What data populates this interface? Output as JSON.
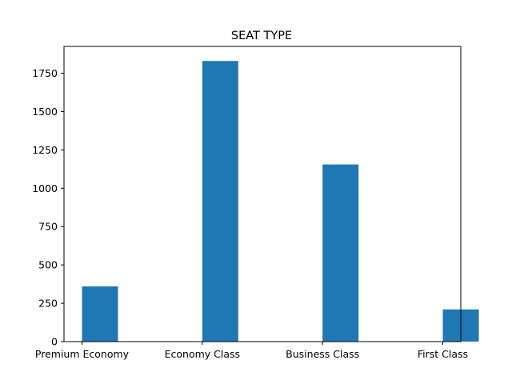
{
  "chart_data": {
    "type": "bar",
    "title": "SEAT TYPE",
    "xlabel": "",
    "ylabel": "",
    "categories": [
      "Premium Economy",
      "Economy Class",
      "Business Class",
      "First Class"
    ],
    "values": [
      360,
      1830,
      1155,
      210
    ],
    "ylim": [
      0,
      1925
    ],
    "yticks": [
      0,
      250,
      500,
      750,
      1000,
      1250,
      1500,
      1750
    ],
    "bar_color": "#1f77b4",
    "grid": false,
    "legend": "none"
  }
}
